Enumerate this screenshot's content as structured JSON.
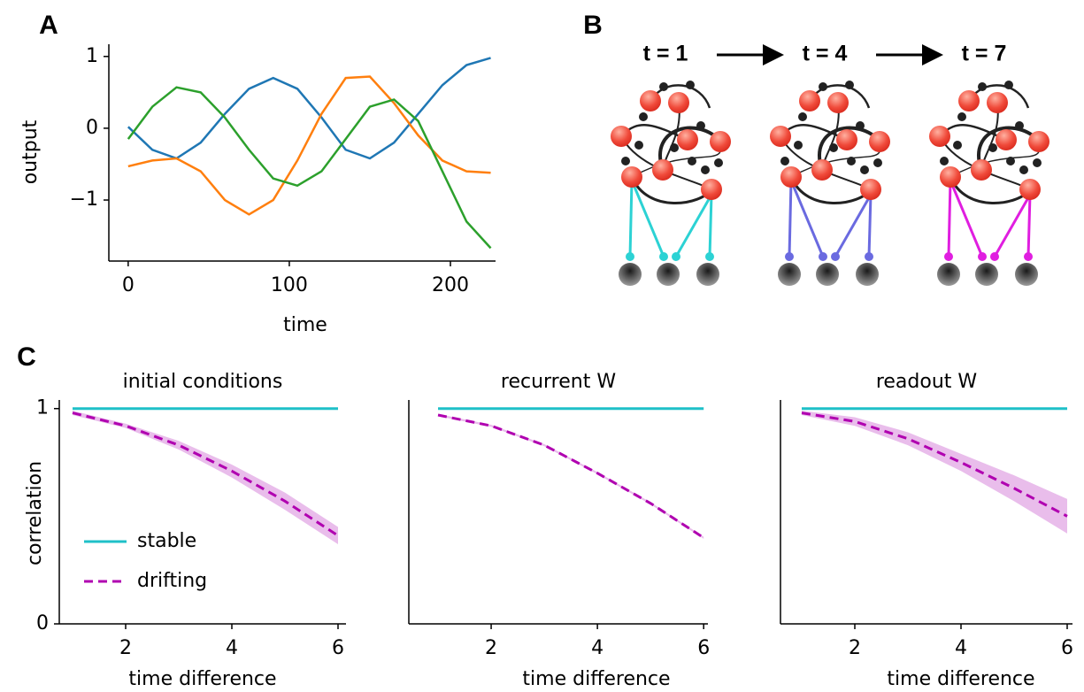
{
  "panel_labels": [
    "A",
    "B",
    "C"
  ],
  "diagram": {
    "labels": [
      "t = 1",
      "t = 4",
      "t = 7"
    ]
  },
  "chart_data": [
    {
      "type": "line",
      "xlabel": "time",
      "ylabel": "output",
      "x": [
        0,
        15,
        30,
        45,
        60,
        75,
        90,
        105,
        120,
        135,
        150,
        165,
        180,
        195,
        210,
        225
      ],
      "xlim": [
        -12,
        228
      ],
      "ylim": [
        -1.85,
        1.17
      ],
      "xticks": [
        0,
        100,
        200
      ],
      "yticks": [
        1,
        0,
        {
          "value": -1,
          "label": "−1"
        }
      ],
      "series": [
        {
          "color": "#1f77b4",
          "values": [
            0.02,
            -0.3,
            -0.42,
            -0.2,
            0.2,
            0.55,
            0.7,
            0.55,
            0.15,
            -0.3,
            -0.42,
            -0.2,
            0.2,
            0.6,
            0.88,
            0.98
          ]
        },
        {
          "color": "#ff7f0e",
          "values": [
            -0.53,
            -0.45,
            -0.42,
            -0.6,
            -1.0,
            -1.2,
            -1.0,
            -0.45,
            0.2,
            0.7,
            0.72,
            0.35,
            -0.1,
            -0.45,
            -0.6,
            -0.62
          ]
        },
        {
          "color": "#2ca02c",
          "values": [
            -0.15,
            0.3,
            0.57,
            0.5,
            0.15,
            -0.3,
            -0.7,
            -0.8,
            -0.6,
            -0.15,
            0.3,
            0.4,
            0.1,
            -0.6,
            -1.3,
            -1.67
          ]
        }
      ]
    },
    {
      "type": "line",
      "title": "initial conditions",
      "xlabel": "time difference",
      "ylabel": "correlation",
      "x": [
        1,
        2,
        3,
        4,
        5,
        6
      ],
      "xlim": [
        0.75,
        6.15
      ],
      "ylim": [
        0,
        1.04
      ],
      "xticks": [
        2,
        4,
        6
      ],
      "yticks": [
        0,
        1
      ],
      "legend": "lower left",
      "series": [
        {
          "name": "stable",
          "color": "#1fc0c8",
          "values": [
            1,
            1,
            1,
            1,
            1,
            1
          ]
        },
        {
          "name": "drifting",
          "color": "#b000b0",
          "band_color": "#e9bdeb",
          "dashed": true,
          "values": [
            0.98,
            0.92,
            0.83,
            0.71,
            0.57,
            0.41
          ],
          "lower": [
            0.97,
            0.91,
            0.81,
            0.68,
            0.53,
            0.37
          ],
          "upper": [
            0.99,
            0.93,
            0.85,
            0.74,
            0.61,
            0.45
          ]
        }
      ]
    },
    {
      "type": "line",
      "title": "recurrent W",
      "xlabel": "time difference",
      "x": [
        1,
        2,
        3,
        4,
        5,
        6
      ],
      "xlim": [
        0.45,
        6.08
      ],
      "ylim": [
        0,
        1.04
      ],
      "xticks": [
        2,
        4,
        6
      ],
      "series": [
        {
          "name": "stable",
          "color": "#1fc0c8",
          "values": [
            1,
            1,
            1,
            1,
            1,
            1
          ]
        },
        {
          "name": "drifting",
          "color": "#b000b0",
          "band_color": "#e9bdeb",
          "dashed": true,
          "values": [
            0.97,
            0.92,
            0.83,
            0.7,
            0.56,
            0.4
          ],
          "lower": [
            0.965,
            0.915,
            0.825,
            0.695,
            0.555,
            0.395
          ],
          "upper": [
            0.975,
            0.925,
            0.835,
            0.705,
            0.565,
            0.405
          ]
        }
      ]
    },
    {
      "type": "line",
      "title": "readout W",
      "xlabel": "time difference",
      "x": [
        1,
        2,
        3,
        4,
        5,
        6
      ],
      "xlim": [
        0.6,
        6.1
      ],
      "ylim": [
        0,
        1.04
      ],
      "xticks": [
        2,
        4,
        6
      ],
      "series": [
        {
          "name": "stable",
          "color": "#1fc0c8",
          "values": [
            1,
            1,
            1,
            1,
            1,
            1
          ]
        },
        {
          "name": "drifting",
          "color": "#b000b0",
          "band_color": "#e9bdeb",
          "dashed": true,
          "values": [
            0.98,
            0.94,
            0.86,
            0.75,
            0.63,
            0.5
          ],
          "lower": [
            0.97,
            0.92,
            0.83,
            0.71,
            0.57,
            0.42
          ],
          "upper": [
            0.99,
            0.96,
            0.89,
            0.79,
            0.69,
            0.58
          ]
        }
      ]
    }
  ]
}
